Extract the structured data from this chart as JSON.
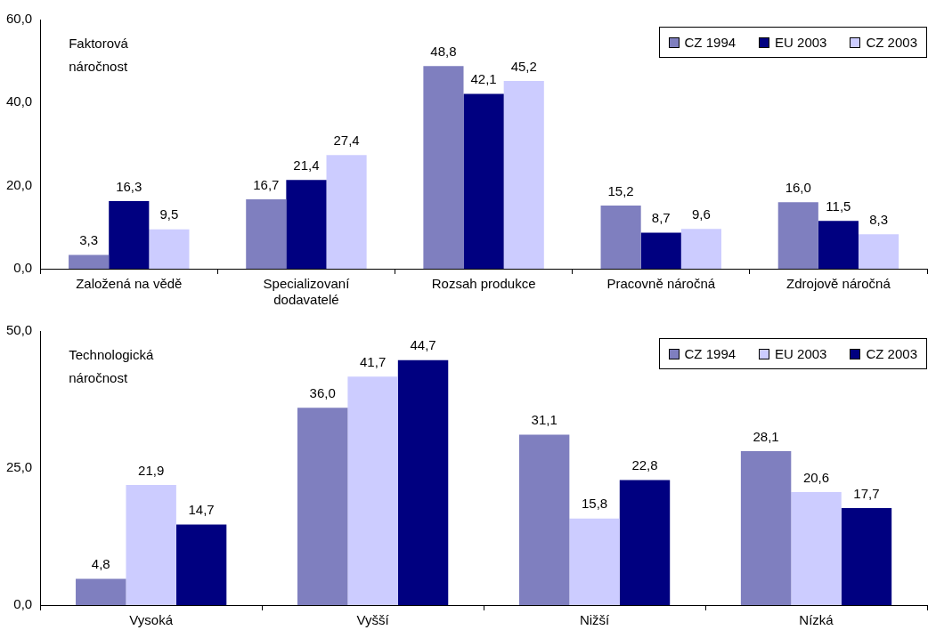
{
  "chart_data": [
    {
      "type": "bar",
      "categories": [
        "Založená na vědě",
        "Specializovaní dodavatelé",
        "Rozsah produkce",
        "Pracovně náročná",
        "Zdrojově náročná"
      ],
      "series": [
        {
          "name": "CZ 1994",
          "color": "#7f7fbf",
          "values": [
            3.3,
            16.7,
            48.8,
            15.2,
            16.0
          ],
          "value_labels": [
            "3,3",
            "16,7",
            "48,8",
            "15,2",
            "16,0"
          ]
        },
        {
          "name": "EU 2003",
          "color": "#000080",
          "values": [
            16.3,
            21.4,
            42.1,
            8.7,
            11.5
          ],
          "value_labels": [
            "16,3",
            "21,4",
            "42,1",
            "8,7",
            "11,5"
          ]
        },
        {
          "name": "CZ 2003",
          "color": "#ccccff",
          "values": [
            9.5,
            27.4,
            45.2,
            9.6,
            8.3
          ],
          "value_labels": [
            "9,5",
            "27,4",
            "45,2",
            "9,6",
            "8,3"
          ]
        }
      ],
      "ylim": [
        0,
        60
      ],
      "yticks": [
        {
          "value": 0,
          "label": "0,0"
        },
        {
          "value": 20,
          "label": "20,0"
        },
        {
          "value": 40,
          "label": "40,0"
        },
        {
          "value": 60,
          "label": "60,0"
        }
      ],
      "grid": false,
      "legend": "top right",
      "annotations": [
        "Faktorová náročnost"
      ]
    },
    {
      "type": "bar",
      "categories": [
        "Vysoká",
        "Vyšší",
        "Nižší",
        "Nízká"
      ],
      "series": [
        {
          "name": "CZ 1994",
          "color": "#7f7fbf",
          "values": [
            4.8,
            36.0,
            31.1,
            28.1
          ],
          "value_labels": [
            "4,8",
            "36,0",
            "31,1",
            "28,1"
          ]
        },
        {
          "name": "EU 2003",
          "color": "#ccccff",
          "values": [
            21.9,
            41.7,
            15.8,
            20.6
          ],
          "value_labels": [
            "21,9",
            "41,7",
            "15,8",
            "20,6"
          ]
        },
        {
          "name": "CZ 2003",
          "color": "#000080",
          "values": [
            14.7,
            44.7,
            22.8,
            17.7
          ],
          "value_labels": [
            "14,7",
            "44,7",
            "22,8",
            "17,7"
          ]
        }
      ],
      "ylim": [
        0,
        50
      ],
      "yticks": [
        {
          "value": 0,
          "label": "0,0"
        },
        {
          "value": 25,
          "label": "25,0"
        },
        {
          "value": 50,
          "label": "50,0"
        }
      ],
      "grid": false,
      "legend": "top right",
      "annotations": [
        "Technologická náročnost"
      ]
    }
  ]
}
